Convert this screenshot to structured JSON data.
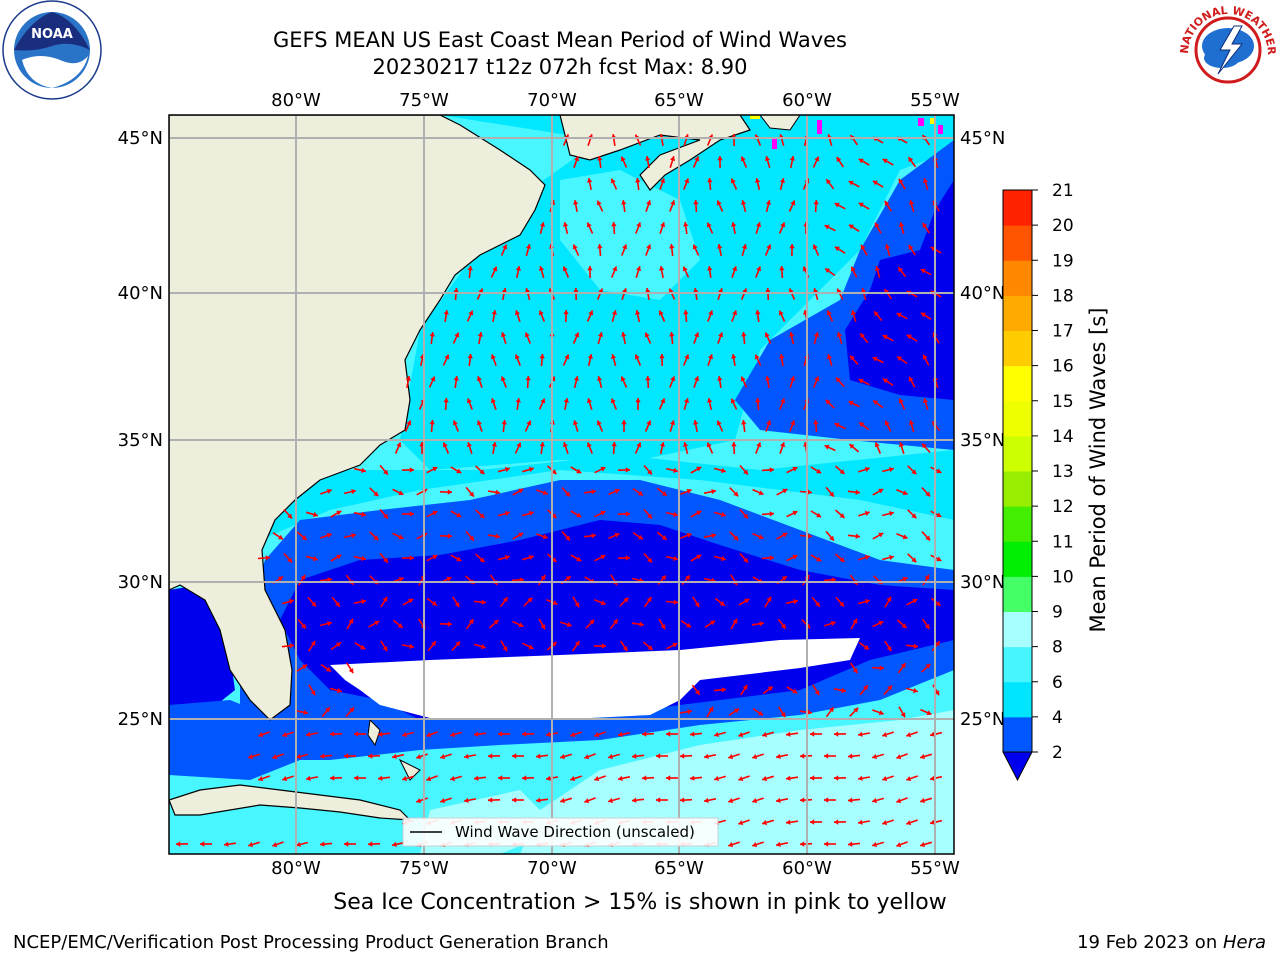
{
  "header": {
    "title_line1": "GEFS MEAN US East Coast Mean Period of Wind Waves",
    "title_line2": "20230217 t12z 072h fcst   Max: 8.90"
  },
  "logos": {
    "left": {
      "name": "noaa-logo",
      "text": "NOAA"
    },
    "right": {
      "name": "nws-logo",
      "text": "NATIONAL WEATHER SERVICE"
    }
  },
  "map": {
    "lon_labels": [
      "80°W",
      "75°W",
      "70°W",
      "65°W",
      "60°W",
      "55°W"
    ],
    "lat_labels": [
      "45°N",
      "40°N",
      "35°N",
      "30°N",
      "25°N"
    ],
    "legend_label": "Wind Wave Direction (unscaled)",
    "colors": {
      "land": "#eeeedd",
      "ocean_2_4": "#0057ff",
      "ocean_lt2": "#0000ee",
      "ocean_4_6": "#00e7ff",
      "ocean_6_8": "#48f6ff",
      "ocean_8_9": "#a8ffff",
      "arrow": "#ff0000",
      "grid": "#b0b0b0",
      "no_data": "#ffffff",
      "sea_ice": "#ff00ff"
    }
  },
  "colorbar": {
    "label": "Mean Period of Wind Waves [s]",
    "ticks": [
      "2",
      "4",
      "6",
      "8",
      "9",
      "10",
      "11",
      "12",
      "13",
      "14",
      "15",
      "16",
      "17",
      "18",
      "19",
      "20",
      "21"
    ],
    "colors": [
      "#0056ff",
      "#00e5ff",
      "#47f5ff",
      "#a8ffff",
      "#44ff66",
      "#00ee00",
      "#44ee00",
      "#99ee00",
      "#ccff00",
      "#eeff00",
      "#ffff00",
      "#ffcc00",
      "#ffaa00",
      "#ff8800",
      "#ff5500",
      "#ff2200"
    ],
    "extend_color": "#0000ee"
  },
  "footer": {
    "ice_notice": "Sea Ice Concentration > 15% is shown in pink to yellow",
    "credit": "NCEP/EMC/Verification Post Processing Product Generation Branch",
    "date_prefix": "19 Feb 2023 on ",
    "date_machine": "Hera"
  }
}
